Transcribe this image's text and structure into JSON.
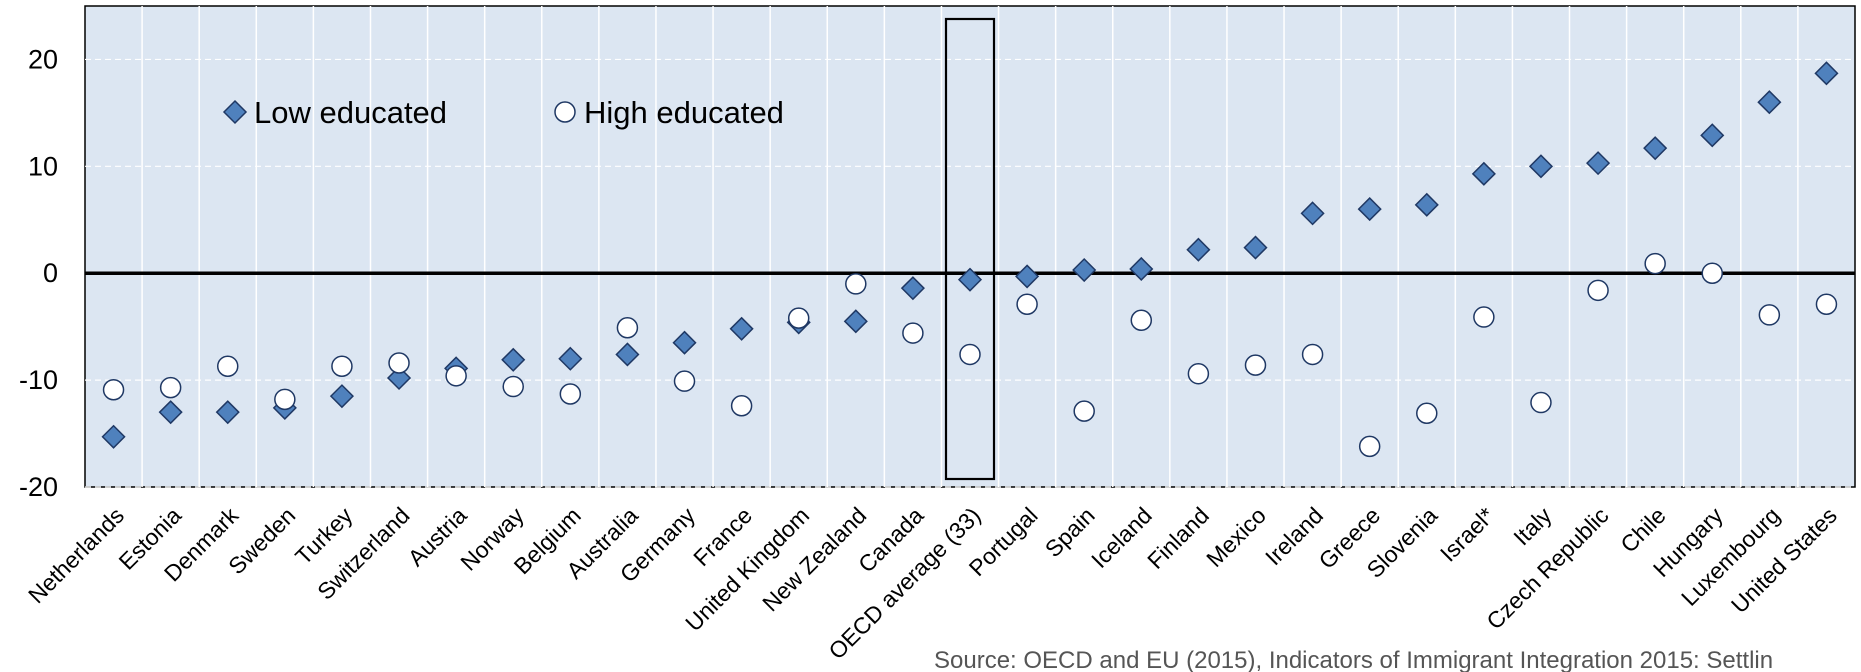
{
  "chart_data": {
    "type": "dot",
    "categories": [
      "Netherlands",
      "Estonia",
      "Denmark",
      "Sweden",
      "Turkey",
      "Switzerland",
      "Austria",
      "Norway",
      "Belgium",
      "Australia",
      "Germany",
      "France",
      "United Kingdom",
      "New Zealand",
      "Canada",
      "OECD average (33)",
      "Portugal",
      "Spain",
      "Iceland",
      "Finland",
      "Mexico",
      "Ireland",
      "Greece",
      "Slovenia",
      "Israel*",
      "Italy",
      "Czech Republic",
      "Chile",
      "Hungary",
      "Luxembourg",
      "United States"
    ],
    "series": [
      {
        "name": "Low educated",
        "color": "#4f81bd",
        "marker": "diamond",
        "values": [
          -15.3,
          -13.0,
          -13.0,
          -12.6,
          -11.5,
          -9.8,
          -8.9,
          -8.1,
          -8.0,
          -7.6,
          -6.5,
          -5.2,
          -4.6,
          -4.5,
          -1.4,
          -0.6,
          -0.3,
          0.3,
          0.4,
          2.2,
          2.4,
          5.6,
          6.0,
          6.4,
          9.3,
          10.0,
          10.3,
          11.7,
          12.9,
          16.0,
          18.7
        ]
      },
      {
        "name": "High educated",
        "color": "#ffffff",
        "marker": "circle",
        "values": [
          -10.9,
          -10.7,
          -8.7,
          -11.8,
          -8.7,
          -8.4,
          -9.6,
          -10.6,
          -11.3,
          -5.1,
          -10.1,
          -12.4,
          -4.2,
          -1.0,
          -5.6,
          -7.6,
          -2.9,
          -12.9,
          -4.4,
          -9.4,
          -8.6,
          -7.6,
          -16.2,
          -13.1,
          -4.1,
          -12.1,
          -1.6,
          0.9,
          0.0,
          -3.9,
          -2.9
        ]
      }
    ],
    "ylim": [
      -20,
      25
    ],
    "yticks": [
      -20,
      -10,
      0,
      10,
      20
    ],
    "grid": true,
    "legend": "top-left",
    "source": "Source: OECD and EU (2015), Indicators of Immigrant Integration 2015: Settlin"
  }
}
